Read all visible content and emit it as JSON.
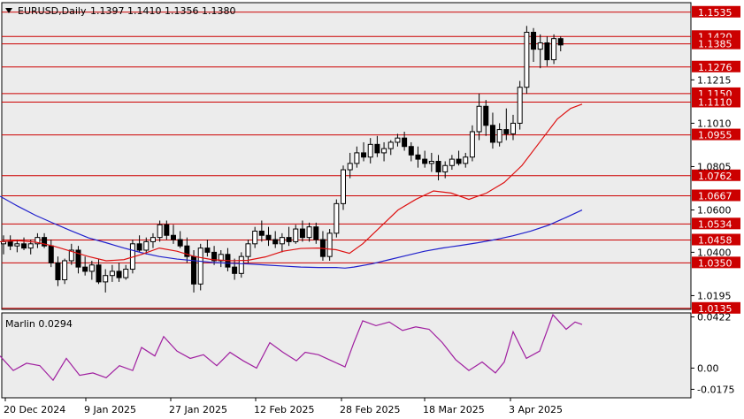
{
  "header": {
    "symbol": "EURUSD,Daily",
    "ohlc": "1.1397 1.1410 1.1356 1.1380"
  },
  "indicator": {
    "label": "Marlin 0.0294",
    "ticks": [
      "0.0422",
      "0.00",
      "-0.0175"
    ]
  },
  "colors": {
    "background": "#ffffff",
    "plot_bg": "#ececec",
    "level_line": "#cc0000",
    "level_label_bg": "#cc0000",
    "ma_blue": "#2020cc",
    "ma_red": "#dd1111",
    "marlin": "#a020a0",
    "candle_bull": "#ffffff",
    "candle_bear": "#000000"
  },
  "chart_data": {
    "type": "candlestick",
    "x_axis_labels": [
      "20 Dec 2024",
      "9 Jan 2025",
      "27 Jan 2025",
      "12 Feb 2025",
      "28 Feb 2025",
      "18 Mar 2025",
      "3 Apr 2025"
    ],
    "ylim": [
      1.013,
      1.158
    ],
    "y_ticks_plain": [
      "1.1215",
      "1.1010",
      "1.0805",
      "1.0600",
      "1.0400",
      "1.0195"
    ],
    "levels": [
      "1.1535",
      "1.1420",
      "1.1385",
      "1.1276",
      "1.1150",
      "1.1110",
      "1.0955",
      "1.0762",
      "1.0667",
      "1.0534",
      "1.0458",
      "1.0350",
      "1.0135"
    ],
    "candles": [
      [
        1.044,
        1.048,
        1.039,
        1.045
      ],
      [
        1.045,
        1.048,
        1.041,
        1.043
      ],
      [
        1.043,
        1.046,
        1.04,
        1.044
      ],
      [
        1.044,
        1.047,
        1.041,
        1.042
      ],
      [
        1.042,
        1.046,
        1.039,
        1.044
      ],
      [
        1.044,
        1.049,
        1.042,
        1.047
      ],
      [
        1.047,
        1.049,
        1.042,
        1.043
      ],
      [
        1.043,
        1.046,
        1.033,
        1.035
      ],
      [
        1.035,
        1.038,
        1.024,
        1.027
      ],
      [
        1.027,
        1.037,
        1.025,
        1.036
      ],
      [
        1.036,
        1.044,
        1.034,
        1.041
      ],
      [
        1.041,
        1.043,
        1.03,
        1.033
      ],
      [
        1.033,
        1.038,
        1.029,
        1.031
      ],
      [
        1.031,
        1.036,
        1.027,
        1.034
      ],
      [
        1.034,
        1.037,
        1.025,
        1.026
      ],
      [
        1.026,
        1.032,
        1.021,
        1.029
      ],
      [
        1.029,
        1.034,
        1.026,
        1.031
      ],
      [
        1.031,
        1.035,
        1.026,
        1.028
      ],
      [
        1.028,
        1.034,
        1.027,
        1.032
      ],
      [
        1.032,
        1.046,
        1.03,
        1.044
      ],
      [
        1.044,
        1.048,
        1.04,
        1.041
      ],
      [
        1.041,
        1.047,
        1.039,
        1.045
      ],
      [
        1.045,
        1.049,
        1.042,
        1.047
      ],
      [
        1.047,
        1.055,
        1.045,
        1.053
      ],
      [
        1.053,
        1.055,
        1.046,
        1.048
      ],
      [
        1.048,
        1.053,
        1.044,
        1.046
      ],
      [
        1.046,
        1.05,
        1.042,
        1.043
      ],
      [
        1.043,
        1.047,
        1.035,
        1.038
      ],
      [
        1.038,
        1.041,
        1.021,
        1.025
      ],
      [
        1.025,
        1.044,
        1.022,
        1.042
      ],
      [
        1.042,
        1.046,
        1.038,
        1.04
      ],
      [
        1.04,
        1.043,
        1.034,
        1.036
      ],
      [
        1.036,
        1.041,
        1.033,
        1.039
      ],
      [
        1.039,
        1.042,
        1.031,
        1.033
      ],
      [
        1.033,
        1.037,
        1.027,
        1.03
      ],
      [
        1.03,
        1.04,
        1.028,
        1.038
      ],
      [
        1.038,
        1.046,
        1.035,
        1.044
      ],
      [
        1.044,
        1.052,
        1.042,
        1.05
      ],
      [
        1.05,
        1.055,
        1.045,
        1.048
      ],
      [
        1.048,
        1.052,
        1.043,
        1.046
      ],
      [
        1.046,
        1.05,
        1.042,
        1.044
      ],
      [
        1.044,
        1.049,
        1.04,
        1.047
      ],
      [
        1.047,
        1.052,
        1.043,
        1.045
      ],
      [
        1.045,
        1.053,
        1.044,
        1.051
      ],
      [
        1.051,
        1.055,
        1.045,
        1.047
      ],
      [
        1.047,
        1.054,
        1.045,
        1.052
      ],
      [
        1.052,
        1.054,
        1.044,
        1.046
      ],
      [
        1.046,
        1.05,
        1.036,
        1.038
      ],
      [
        1.038,
        1.051,
        1.036,
        1.049
      ],
      [
        1.049,
        1.065,
        1.047,
        1.063
      ],
      [
        1.063,
        1.081,
        1.06,
        1.079
      ],
      [
        1.079,
        1.087,
        1.075,
        1.082
      ],
      [
        1.082,
        1.09,
        1.08,
        1.087
      ],
      [
        1.087,
        1.092,
        1.083,
        1.085
      ],
      [
        1.085,
        1.094,
        1.082,
        1.091
      ],
      [
        1.091,
        1.095,
        1.085,
        1.087
      ],
      [
        1.087,
        1.092,
        1.083,
        1.089
      ],
      [
        1.089,
        1.093,
        1.086,
        1.092
      ],
      [
        1.092,
        1.096,
        1.09,
        1.094
      ],
      [
        1.094,
        1.097,
        1.088,
        1.09
      ],
      [
        1.09,
        1.092,
        1.083,
        1.086
      ],
      [
        1.086,
        1.09,
        1.08,
        1.084
      ],
      [
        1.084,
        1.088,
        1.08,
        1.082
      ],
      [
        1.082,
        1.087,
        1.078,
        1.083
      ],
      [
        1.083,
        1.086,
        1.074,
        1.078
      ],
      [
        1.078,
        1.083,
        1.075,
        1.081
      ],
      [
        1.081,
        1.086,
        1.079,
        1.084
      ],
      [
        1.084,
        1.088,
        1.081,
        1.082
      ],
      [
        1.082,
        1.087,
        1.08,
        1.085
      ],
      [
        1.085,
        1.1,
        1.083,
        1.097
      ],
      [
        1.097,
        1.115,
        1.093,
        1.109
      ],
      [
        1.109,
        1.112,
        1.095,
        1.1
      ],
      [
        1.1,
        1.106,
        1.089,
        1.092
      ],
      [
        1.092,
        1.101,
        1.09,
        1.098
      ],
      [
        1.098,
        1.108,
        1.093,
        1.096
      ],
      [
        1.096,
        1.105,
        1.093,
        1.101
      ],
      [
        1.101,
        1.121,
        1.098,
        1.118
      ],
      [
        1.118,
        1.147,
        1.115,
        1.144
      ],
      [
        1.144,
        1.146,
        1.13,
        1.136
      ],
      [
        1.136,
        1.143,
        1.127,
        1.139
      ],
      [
        1.139,
        1.142,
        1.128,
        1.131
      ],
      [
        1.131,
        1.143,
        1.129,
        1.141
      ],
      [
        1.141,
        1.142,
        1.135,
        1.138
      ]
    ],
    "ma_blue": [
      [
        0,
        1.0665
      ],
      [
        20,
        1.0618
      ],
      [
        40,
        1.0575
      ],
      [
        60,
        1.0538
      ],
      [
        80,
        1.0502
      ],
      [
        100,
        1.0468
      ],
      [
        120,
        1.0445
      ],
      [
        140,
        1.042
      ],
      [
        160,
        1.0398
      ],
      [
        180,
        1.038
      ],
      [
        200,
        1.0368
      ],
      [
        220,
        1.036
      ],
      [
        240,
        1.0352
      ],
      [
        260,
        1.0348
      ],
      [
        280,
        1.0345
      ],
      [
        300,
        1.034
      ],
      [
        320,
        1.0335
      ],
      [
        340,
        1.033
      ],
      [
        360,
        1.0328
      ],
      [
        380,
        1.0328
      ],
      [
        390,
        1.0325
      ],
      [
        400,
        1.033
      ],
      [
        420,
        1.0345
      ],
      [
        440,
        1.0365
      ],
      [
        460,
        1.0385
      ],
      [
        480,
        1.0405
      ],
      [
        500,
        1.042
      ],
      [
        520,
        1.0432
      ],
      [
        540,
        1.0445
      ],
      [
        560,
        1.046
      ],
      [
        580,
        1.0478
      ],
      [
        600,
        1.05
      ],
      [
        620,
        1.0528
      ],
      [
        640,
        1.0565
      ],
      [
        658,
        1.06
      ]
    ],
    "ma_red": [
      [
        0,
        1.045
      ],
      [
        20,
        1.0455
      ],
      [
        40,
        1.0448
      ],
      [
        60,
        1.043
      ],
      [
        80,
        1.0405
      ],
      [
        100,
        1.038
      ],
      [
        120,
        1.036
      ],
      [
        140,
        1.0365
      ],
      [
        160,
        1.039
      ],
      [
        180,
        1.042
      ],
      [
        200,
        1.0405
      ],
      [
        220,
        1.038
      ],
      [
        240,
        1.0365
      ],
      [
        260,
        1.036
      ],
      [
        280,
        1.0362
      ],
      [
        300,
        1.0378
      ],
      [
        320,
        1.0405
      ],
      [
        340,
        1.0418
      ],
      [
        360,
        1.042
      ],
      [
        380,
        1.0412
      ],
      [
        395,
        1.0395
      ],
      [
        410,
        1.044
      ],
      [
        430,
        1.052
      ],
      [
        450,
        1.06
      ],
      [
        470,
        1.065
      ],
      [
        490,
        1.069
      ],
      [
        510,
        1.068
      ],
      [
        530,
        1.065
      ],
      [
        550,
        1.068
      ],
      [
        570,
        1.073
      ],
      [
        590,
        1.081
      ],
      [
        610,
        1.092
      ],
      [
        630,
        1.103
      ],
      [
        645,
        1.108
      ],
      [
        658,
        1.11
      ]
    ],
    "marlin": [
      [
        0,
        0.01
      ],
      [
        15,
        -0.002
      ],
      [
        30,
        0.004
      ],
      [
        45,
        0.002
      ],
      [
        60,
        -0.01
      ],
      [
        75,
        0.008
      ],
      [
        90,
        -0.006
      ],
      [
        105,
        -0.004
      ],
      [
        120,
        -0.008
      ],
      [
        135,
        0.002
      ],
      [
        150,
        -0.002
      ],
      [
        160,
        0.017
      ],
      [
        175,
        0.01
      ],
      [
        185,
        0.026
      ],
      [
        200,
        0.014
      ],
      [
        215,
        0.008
      ],
      [
        230,
        0.011
      ],
      [
        245,
        0.002
      ],
      [
        260,
        0.013
      ],
      [
        275,
        0.006
      ],
      [
        290,
        0.0
      ],
      [
        305,
        0.021
      ],
      [
        320,
        0.013
      ],
      [
        335,
        0.006
      ],
      [
        345,
        0.013
      ],
      [
        360,
        0.011
      ],
      [
        375,
        0.006
      ],
      [
        390,
        0.001
      ],
      [
        400,
        0.021
      ],
      [
        410,
        0.039
      ],
      [
        425,
        0.035
      ],
      [
        440,
        0.038
      ],
      [
        455,
        0.031
      ],
      [
        470,
        0.034
      ],
      [
        485,
        0.032
      ],
      [
        500,
        0.021
      ],
      [
        515,
        0.007
      ],
      [
        530,
        -0.002
      ],
      [
        545,
        0.005
      ],
      [
        560,
        -0.004
      ],
      [
        570,
        0.005
      ],
      [
        580,
        0.03
      ],
      [
        595,
        0.008
      ],
      [
        610,
        0.014
      ],
      [
        625,
        0.044
      ],
      [
        640,
        0.032
      ],
      [
        650,
        0.038
      ],
      [
        658,
        0.036
      ]
    ]
  }
}
